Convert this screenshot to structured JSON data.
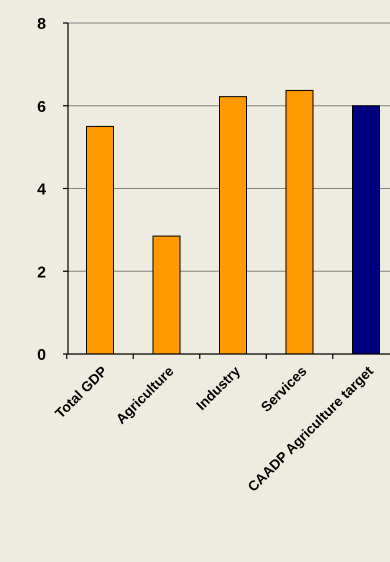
{
  "chart_data": {
    "type": "bar",
    "categories": [
      "Total GDP",
      "Agriculture",
      "Industry",
      "Services",
      "CAADP Agriculture target"
    ],
    "values": [
      5.5,
      2.85,
      6.22,
      6.37,
      6.0
    ],
    "bar_colors": [
      "#FF9900",
      "#FF9900",
      "#FF9900",
      "#FF9900",
      "#000080"
    ],
    "ylim": [
      0,
      8
    ],
    "yticks": [
      0,
      2,
      4,
      6,
      8
    ],
    "ytick_labels": [
      "0",
      "2",
      "4",
      "6",
      "8"
    ],
    "grid": true,
    "legend": "none",
    "title": "",
    "xlabel": "",
    "ylabel": ""
  },
  "colors": {
    "background": "#EEECE1",
    "gridline": "#808080",
    "bar_stroke": "#000000"
  }
}
